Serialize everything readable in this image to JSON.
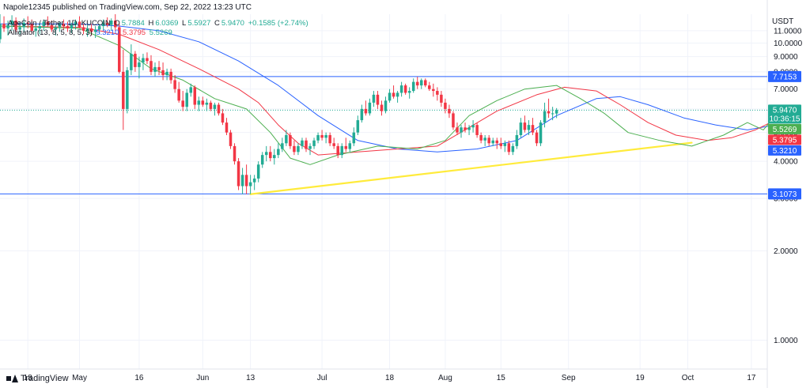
{
  "header": {
    "published_by": "Napole12345 published on TradingView.com, Sep 22, 2022 13:23 UTC"
  },
  "legend": {
    "symbol": "ApeCoin / Tether, 1D, KUCOIN",
    "open_label": "O",
    "open": "5.7884",
    "high_label": "H",
    "high": "6.0369",
    "low_label": "L",
    "low": "5.5927",
    "close_label": "C",
    "close": "5.9470",
    "change": "+0.1585 (+2.74%)",
    "indicator": "Alligator (13, 8, 5, 8, 5, 3)",
    "jaw": "5.3210",
    "teeth": "5.3795",
    "lips": "5.5269"
  },
  "footer": {
    "brand": "TradingView"
  },
  "colors": {
    "up": "#22ab94",
    "down": "#f23645",
    "jaw": "#2962ff",
    "teeth": "#f23645",
    "lips": "#4caf50",
    "hline": "#2962ff",
    "trendline": "#ffeb3b",
    "grid": "#f0f3fa"
  },
  "chart_data": {
    "type": "candlestick",
    "title": "ApeCoin / Tether, 1D, KUCOIN",
    "currency_label": "USDT",
    "yscale": "log",
    "ylim": [
      0.8,
      12.5
    ],
    "y_ticks": [
      "1.0000",
      "2.0000",
      "3.0000",
      "4.0000",
      "5.0000",
      "6.0000",
      "7.0000",
      "8.0000",
      "9.0000",
      "10.0000",
      "11.0000"
    ],
    "y_tick_values": [
      1,
      2,
      3,
      4,
      5,
      6,
      7,
      8,
      9,
      10,
      11
    ],
    "x_start": "2022-04-11",
    "x_end": "2022-10-21",
    "x_ticks": [
      {
        "label": "18",
        "date": "2022-04-18"
      },
      {
        "label": "May",
        "date": "2022-05-01"
      },
      {
        "label": "16",
        "date": "2022-05-16"
      },
      {
        "label": "Jun",
        "date": "2022-06-01"
      },
      {
        "label": "13",
        "date": "2022-06-13"
      },
      {
        "label": "Jul",
        "date": "2022-07-01"
      },
      {
        "label": "18",
        "date": "2022-07-18"
      },
      {
        "label": "Aug",
        "date": "2022-08-01"
      },
      {
        "label": "15",
        "date": "2022-08-15"
      },
      {
        "label": "Sep",
        "date": "2022-09-01"
      },
      {
        "label": "19",
        "date": "2022-09-19"
      },
      {
        "label": "Oct",
        "date": "2022-10-01"
      },
      {
        "label": "17",
        "date": "2022-10-17"
      }
    ],
    "candles_start": "2022-04-11",
    "candles": [
      [
        10.3,
        12.5,
        10.0,
        11.6
      ],
      [
        11.6,
        12.3,
        10.9,
        11.2
      ],
      [
        11.2,
        11.9,
        10.6,
        11.5
      ],
      [
        11.5,
        12.4,
        11.0,
        11.9
      ],
      [
        11.9,
        12.2,
        10.9,
        11.1
      ],
      [
        11.1,
        11.8,
        10.7,
        11.3
      ],
      [
        11.3,
        12.1,
        10.9,
        11.7
      ],
      [
        11.7,
        12.3,
        11.2,
        11.6
      ],
      [
        11.6,
        12.0,
        10.8,
        11.0
      ],
      [
        11.0,
        11.6,
        10.5,
        11.2
      ],
      [
        11.2,
        11.7,
        10.7,
        11.4
      ],
      [
        11.4,
        12.0,
        11.0,
        11.8
      ],
      [
        11.8,
        12.3,
        11.3,
        11.5
      ],
      [
        11.5,
        11.9,
        10.9,
        11.1
      ],
      [
        11.1,
        11.5,
        10.6,
        11.3
      ],
      [
        11.3,
        11.8,
        10.9,
        11.6
      ],
      [
        11.6,
        12.0,
        11.1,
        11.4
      ],
      [
        11.4,
        11.8,
        10.9,
        11.2
      ],
      [
        11.2,
        11.7,
        10.8,
        11.5
      ],
      [
        11.5,
        12.0,
        11.1,
        11.8
      ],
      [
        11.8,
        12.3,
        11.2,
        11.3
      ],
      [
        11.3,
        11.6,
        10.7,
        11.0
      ],
      [
        11.0,
        11.5,
        10.5,
        11.2
      ],
      [
        11.2,
        11.6,
        10.6,
        10.9
      ],
      [
        10.9,
        11.4,
        10.4,
        11.1
      ],
      [
        11.1,
        11.6,
        10.7,
        11.4
      ],
      [
        11.4,
        12.0,
        11.0,
        11.7
      ],
      [
        11.7,
        12.2,
        11.3,
        11.5
      ],
      [
        11.5,
        12.1,
        11.0,
        11.9
      ],
      [
        11.9,
        12.5,
        11.0,
        11.3
      ],
      [
        11.3,
        11.6,
        7.9,
        8.0
      ],
      [
        8.0,
        9.5,
        5.1,
        6.0
      ],
      [
        6.0,
        8.3,
        5.8,
        8.1
      ],
      [
        8.1,
        9.9,
        7.8,
        9.2
      ],
      [
        9.2,
        9.4,
        8.0,
        8.3
      ],
      [
        8.3,
        9.0,
        7.6,
        8.6
      ],
      [
        8.6,
        9.2,
        8.1,
        8.9
      ],
      [
        8.9,
        9.3,
        8.5,
        8.7
      ],
      [
        8.7,
        9.1,
        7.8,
        8.0
      ],
      [
        8.0,
        8.6,
        7.7,
        8.3
      ],
      [
        8.3,
        8.7,
        7.8,
        8.1
      ],
      [
        8.1,
        8.6,
        7.5,
        7.8
      ],
      [
        7.8,
        8.2,
        7.5,
        8.0
      ],
      [
        8.0,
        8.2,
        7.3,
        7.5
      ],
      [
        7.5,
        7.8,
        6.8,
        7.0
      ],
      [
        7.0,
        7.4,
        6.3,
        6.4
      ],
      [
        6.4,
        6.9,
        5.9,
        6.1
      ],
      [
        6.1,
        7.0,
        5.9,
        6.8
      ],
      [
        6.8,
        7.3,
        6.6,
        7.1
      ],
      [
        7.1,
        7.2,
        6.0,
        6.2
      ],
      [
        6.2,
        6.6,
        5.9,
        6.4
      ],
      [
        6.4,
        6.6,
        6.1,
        6.2
      ],
      [
        6.2,
        6.5,
        5.9,
        6.3
      ],
      [
        6.3,
        6.4,
        5.9,
        6.0
      ],
      [
        6.0,
        6.3,
        5.7,
        6.2
      ],
      [
        6.2,
        6.3,
        5.7,
        5.8
      ],
      [
        5.8,
        6.0,
        5.3,
        5.4
      ],
      [
        5.4,
        5.6,
        4.9,
        5.0
      ],
      [
        5.0,
        5.1,
        4.4,
        4.5
      ],
      [
        4.5,
        4.6,
        3.9,
        4.0
      ],
      [
        4.0,
        4.1,
        3.2,
        3.3
      ],
      [
        3.3,
        3.8,
        3.1,
        3.6
      ],
      [
        3.6,
        3.9,
        3.1,
        3.3
      ],
      [
        3.3,
        3.6,
        3.1,
        3.4
      ],
      [
        3.4,
        3.6,
        3.2,
        3.5
      ],
      [
        3.5,
        4.0,
        3.4,
        3.9
      ],
      [
        3.9,
        4.3,
        3.8,
        4.2
      ],
      [
        4.2,
        4.5,
        4.0,
        4.3
      ],
      [
        4.3,
        4.5,
        4.0,
        4.1
      ],
      [
        4.1,
        4.4,
        3.9,
        4.2
      ],
      [
        4.2,
        4.6,
        4.1,
        4.4
      ],
      [
        4.4,
        4.8,
        4.3,
        4.6
      ],
      [
        4.6,
        5.1,
        4.5,
        4.9
      ],
      [
        4.9,
        5.0,
        4.4,
        4.5
      ],
      [
        4.5,
        4.7,
        4.2,
        4.3
      ],
      [
        4.3,
        4.6,
        4.2,
        4.5
      ],
      [
        4.5,
        4.8,
        4.4,
        4.7
      ],
      [
        4.7,
        4.8,
        4.3,
        4.4
      ],
      [
        4.4,
        4.6,
        4.2,
        4.5
      ],
      [
        4.5,
        4.8,
        4.4,
        4.7
      ],
      [
        4.7,
        5.0,
        4.6,
        4.9
      ],
      [
        4.9,
        5.1,
        4.7,
        4.8
      ],
      [
        4.8,
        5.0,
        4.6,
        4.9
      ],
      [
        4.9,
        5.0,
        4.5,
        4.6
      ],
      [
        4.6,
        4.8,
        4.4,
        4.5
      ],
      [
        4.5,
        4.6,
        4.1,
        4.2
      ],
      [
        4.2,
        4.6,
        4.1,
        4.5
      ],
      [
        4.5,
        4.8,
        4.3,
        4.4
      ],
      [
        4.4,
        4.7,
        4.3,
        4.6
      ],
      [
        4.6,
        5.2,
        4.5,
        5.0
      ],
      [
        5.0,
        5.7,
        4.9,
        5.5
      ],
      [
        5.5,
        6.2,
        5.4,
        6.0
      ],
      [
        6.0,
        6.4,
        5.7,
        5.8
      ],
      [
        5.8,
        6.5,
        5.7,
        6.3
      ],
      [
        6.3,
        6.9,
        6.1,
        6.7
      ],
      [
        6.7,
        6.9,
        6.0,
        6.2
      ],
      [
        6.2,
        6.4,
        5.7,
        5.9
      ],
      [
        5.9,
        6.6,
        5.8,
        6.4
      ],
      [
        6.4,
        7.0,
        6.3,
        6.8
      ],
      [
        6.8,
        7.2,
        6.5,
        6.6
      ],
      [
        6.6,
        6.9,
        6.3,
        6.8
      ],
      [
        6.8,
        7.4,
        6.6,
        7.2
      ],
      [
        7.2,
        7.3,
        6.7,
        6.8
      ],
      [
        6.8,
        7.1,
        6.5,
        6.9
      ],
      [
        6.9,
        7.6,
        6.8,
        7.4
      ],
      [
        7.4,
        7.7,
        7.0,
        7.2
      ],
      [
        7.2,
        7.6,
        7.0,
        7.5
      ],
      [
        7.5,
        7.6,
        7.1,
        7.2
      ],
      [
        7.2,
        7.4,
        6.9,
        7.0
      ],
      [
        7.0,
        7.3,
        6.6,
        6.9
      ],
      [
        6.9,
        7.1,
        6.4,
        6.7
      ],
      [
        6.7,
        6.9,
        6.1,
        6.3
      ],
      [
        6.3,
        6.5,
        5.8,
        6.0
      ],
      [
        6.0,
        6.2,
        5.6,
        5.8
      ],
      [
        5.8,
        5.9,
        5.1,
        5.2
      ],
      [
        5.2,
        5.4,
        4.9,
        5.0
      ],
      [
        5.0,
        5.3,
        4.8,
        5.2
      ],
      [
        5.2,
        5.4,
        5.0,
        5.1
      ],
      [
        5.1,
        5.3,
        4.9,
        5.2
      ],
      [
        5.2,
        5.5,
        5.0,
        5.3
      ],
      [
        5.3,
        5.4,
        4.8,
        4.9
      ],
      [
        4.9,
        5.0,
        4.6,
        4.7
      ],
      [
        4.7,
        4.9,
        4.5,
        4.8
      ],
      [
        4.8,
        4.9,
        4.5,
        4.6
      ],
      [
        4.6,
        4.8,
        4.5,
        4.7
      ],
      [
        4.7,
        4.8,
        4.4,
        4.6
      ],
      [
        4.6,
        4.8,
        4.4,
        4.5
      ],
      [
        4.5,
        4.7,
        4.3,
        4.6
      ],
      [
        4.6,
        4.7,
        4.2,
        4.3
      ],
      [
        4.3,
        4.6,
        4.2,
        4.5
      ],
      [
        4.5,
        5.1,
        4.4,
        4.9
      ],
      [
        4.9,
        5.6,
        4.8,
        5.4
      ],
      [
        5.4,
        5.7,
        5.0,
        5.1
      ],
      [
        5.1,
        5.5,
        4.9,
        5.3
      ],
      [
        5.3,
        5.6,
        4.9,
        5.0
      ],
      [
        5.0,
        5.1,
        4.5,
        4.6
      ],
      [
        4.6,
        5.5,
        4.5,
        5.4
      ],
      [
        5.4,
        6.3,
        5.2,
        5.9
      ],
      [
        5.9,
        6.5,
        5.6,
        5.8
      ],
      [
        5.8,
        6.1,
        5.5,
        5.8
      ],
      [
        5.79,
        6.04,
        5.59,
        5.95
      ]
    ],
    "alligator": {
      "params": "13, 8, 5, 8, 5, 3",
      "jaw": {
        "name": "Jaw",
        "color": "#2962ff",
        "last": 5.321,
        "points": [
          [
            0,
            11.6
          ],
          [
            20,
            11.6
          ],
          [
            30,
            11.4
          ],
          [
            40,
            11.0
          ],
          [
            50,
            10.1
          ],
          [
            60,
            8.7
          ],
          [
            70,
            7.2
          ],
          [
            80,
            5.7
          ],
          [
            90,
            4.7
          ],
          [
            100,
            4.4
          ],
          [
            110,
            4.3
          ],
          [
            120,
            4.4
          ],
          [
            130,
            4.7
          ],
          [
            140,
            5.7
          ],
          [
            150,
            6.5
          ],
          [
            156,
            6.6
          ],
          [
            163,
            6.2
          ],
          [
            172,
            5.6
          ],
          [
            180,
            5.3
          ],
          [
            188,
            5.1
          ],
          [
            195,
            5.3
          ]
        ]
      },
      "teeth": {
        "name": "Teeth",
        "color": "#f23645",
        "last": 5.3795,
        "points": [
          [
            0,
            11.4
          ],
          [
            20,
            11.3
          ],
          [
            30,
            10.7
          ],
          [
            40,
            9.5
          ],
          [
            50,
            8.2
          ],
          [
            60,
            7.0
          ],
          [
            65,
            6.3
          ],
          [
            70,
            5.3
          ],
          [
            75,
            4.6
          ],
          [
            80,
            4.2
          ],
          [
            90,
            4.3
          ],
          [
            100,
            4.4
          ],
          [
            110,
            4.5
          ],
          [
            118,
            5.2
          ],
          [
            125,
            5.9
          ],
          [
            135,
            6.7
          ],
          [
            142,
            7.1
          ],
          [
            150,
            6.9
          ],
          [
            156,
            6.2
          ],
          [
            163,
            5.4
          ],
          [
            170,
            4.9
          ],
          [
            178,
            4.7
          ],
          [
            184,
            4.8
          ],
          [
            190,
            5.1
          ],
          [
            195,
            5.5
          ]
        ]
      },
      "lips": {
        "name": "Lips",
        "color": "#4caf50",
        "last": 5.5269,
        "points": [
          [
            0,
            11.4
          ],
          [
            20,
            11.2
          ],
          [
            30,
            9.8
          ],
          [
            38,
            8.2
          ],
          [
            46,
            7.5
          ],
          [
            54,
            6.5
          ],
          [
            62,
            6.0
          ],
          [
            68,
            5.0
          ],
          [
            73,
            4.1
          ],
          [
            78,
            3.9
          ],
          [
            85,
            4.2
          ],
          [
            95,
            4.5
          ],
          [
            105,
            4.4
          ],
          [
            112,
            4.7
          ],
          [
            118,
            5.7
          ],
          [
            125,
            6.4
          ],
          [
            132,
            7.0
          ],
          [
            140,
            7.2
          ],
          [
            146,
            6.5
          ],
          [
            152,
            5.8
          ],
          [
            158,
            5.0
          ],
          [
            166,
            4.7
          ],
          [
            174,
            4.5
          ],
          [
            182,
            4.9
          ],
          [
            188,
            5.4
          ],
          [
            192,
            5.1
          ],
          [
            195,
            5.7
          ]
        ]
      }
    },
    "horizontal_lines": [
      {
        "label": "7.7153",
        "value": 7.7153,
        "color": "#2962ff"
      },
      {
        "label": "3.1073",
        "value": 3.1073,
        "color": "#2962ff"
      }
    ],
    "trendline": {
      "color": "#ffeb3b",
      "from": [
        "2022-06-13",
        3.1
      ],
      "to": [
        "2022-10-02",
        4.62
      ]
    },
    "price_labels": [
      {
        "text": "5.9470",
        "sub": "10:36:15",
        "value": 5.947,
        "bg": "#22ab94"
      },
      {
        "text": "5.5269",
        "value": 5.5269,
        "bg": "#4caf50"
      },
      {
        "text": "5.3795",
        "value": 5.3795,
        "bg": "#f23645"
      },
      {
        "text": "5.3210",
        "value": 5.321,
        "bg": "#2962ff"
      }
    ],
    "last_price_line": {
      "value": 5.947,
      "color": "#22ab94"
    }
  }
}
